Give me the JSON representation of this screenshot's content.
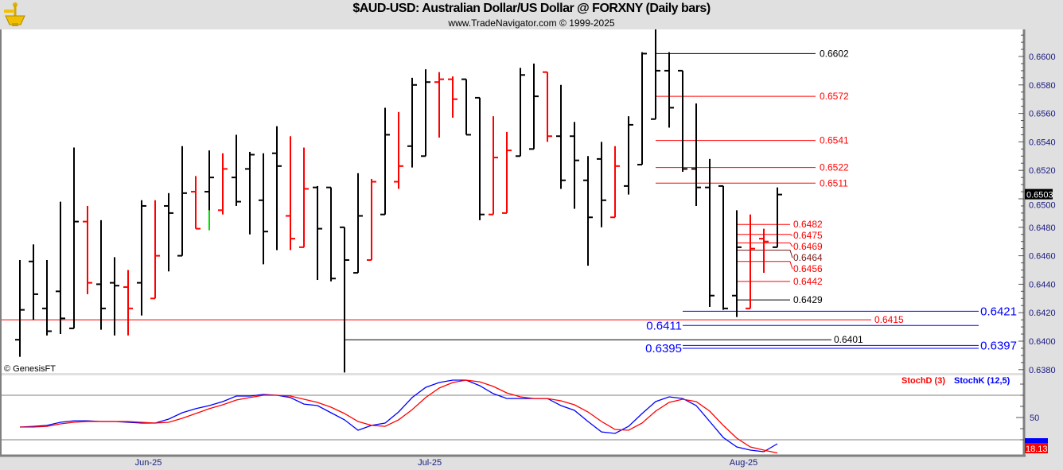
{
  "header": {
    "title": "$AUD-USD:  Australian Dollar/US Dollar @ FORXNY  (Daily bars)",
    "subtitle": "www.TradeNavigator.com © 1999-2025",
    "logo_icon": "sextant-icon"
  },
  "copyright": "© GenesisFT",
  "colors": {
    "up_bar": "#000000",
    "red_bar": "#ff0000",
    "green_bar": "#00dd00",
    "stoch_d": "#ff0000",
    "stoch_k": "#0000ff",
    "level_blue": "#0000ff"
  },
  "chart_data": [
    {
      "type": "ohlc",
      "ylim": [
        0.637,
        0.662
      ],
      "y_ticks": [
        0.66,
        0.658,
        0.656,
        0.654,
        0.652,
        0.65,
        0.648,
        0.646,
        0.644,
        0.642,
        0.64,
        0.638
      ],
      "y_tick_labels": [
        "0.6600",
        "0.6580",
        "0.6560",
        "0.6540",
        "0.6520",
        "0.6500",
        "0.6480",
        "0.6460",
        "0.6440",
        "0.6420",
        "0.6400",
        "0.6380"
      ],
      "last_price": "0.6503",
      "x_labels": [
        {
          "label": "Jun-25",
          "bar": 9.5
        },
        {
          "label": "Jul-25",
          "bar": 30.3
        },
        {
          "label": "Aug-25",
          "bar": 53.5
        }
      ],
      "bars": [
        {
          "o": 0.6401,
          "h": 0.6457,
          "l": 0.6389,
          "c": 0.6422,
          "color": "black"
        },
        {
          "o": 0.6456,
          "h": 0.6468,
          "l": 0.6415,
          "c": 0.6433,
          "color": "black"
        },
        {
          "o": 0.6423,
          "h": 0.6457,
          "l": 0.6404,
          "c": 0.6407,
          "color": "black"
        },
        {
          "o": 0.6435,
          "h": 0.6498,
          "l": 0.6405,
          "c": 0.6416,
          "color": "black"
        },
        {
          "o": 0.6409,
          "h": 0.6536,
          "l": 0.6409,
          "c": 0.6484,
          "color": "black"
        },
        {
          "o": 0.6484,
          "h": 0.6495,
          "l": 0.6433,
          "c": 0.6441,
          "color": "red"
        },
        {
          "o": 0.644,
          "h": 0.6485,
          "l": 0.6408,
          "c": 0.6423,
          "color": "black"
        },
        {
          "o": 0.6441,
          "h": 0.6459,
          "l": 0.6404,
          "c": 0.6439,
          "color": "black"
        },
        {
          "o": 0.6438,
          "h": 0.645,
          "l": 0.6404,
          "c": 0.6423,
          "color": "red"
        },
        {
          "o": 0.6441,
          "h": 0.6499,
          "l": 0.6418,
          "c": 0.6495,
          "color": "black"
        },
        {
          "o": 0.643,
          "h": 0.6499,
          "l": 0.643,
          "c": 0.646,
          "color": "red"
        },
        {
          "o": 0.6495,
          "h": 0.6504,
          "l": 0.6449,
          "c": 0.649,
          "color": "black"
        },
        {
          "o": 0.646,
          "h": 0.6537,
          "l": 0.646,
          "c": 0.6504,
          "color": "black"
        },
        {
          "o": 0.6505,
          "h": 0.6516,
          "l": 0.6479,
          "c": 0.6479,
          "color": "red"
        },
        {
          "o": 0.6505,
          "h": 0.6534,
          "l": 0.6478,
          "c": 0.6515,
          "color": "black",
          "lower_color": "green",
          "lower_from": 0.6492
        },
        {
          "o": 0.6492,
          "h": 0.6532,
          "l": 0.6489,
          "c": 0.6521,
          "color": "red"
        },
        {
          "o": 0.6515,
          "h": 0.6545,
          "l": 0.6495,
          "c": 0.6498,
          "color": "black"
        },
        {
          "o": 0.6521,
          "h": 0.6533,
          "l": 0.6475,
          "c": 0.6531,
          "color": "black"
        },
        {
          "o": 0.6499,
          "h": 0.6532,
          "l": 0.6454,
          "c": 0.6477,
          "color": "black"
        },
        {
          "o": 0.6532,
          "h": 0.6551,
          "l": 0.6464,
          "c": 0.6523,
          "color": "black"
        },
        {
          "o": 0.6488,
          "h": 0.6544,
          "l": 0.6464,
          "c": 0.6472,
          "color": "red"
        },
        {
          "o": 0.6466,
          "h": 0.6536,
          "l": 0.6466,
          "c": 0.6507,
          "color": "red"
        },
        {
          "o": 0.6508,
          "h": 0.6509,
          "l": 0.6443,
          "c": 0.6479,
          "color": "black"
        },
        {
          "o": 0.6508,
          "h": 0.6508,
          "l": 0.6442,
          "c": 0.6444,
          "color": "black"
        },
        {
          "o": 0.648,
          "h": 0.648,
          "l": 0.6378,
          "c": 0.6457,
          "color": "black"
        },
        {
          "o": 0.6448,
          "h": 0.6518,
          "l": 0.6448,
          "c": 0.6488,
          "color": "black"
        },
        {
          "o": 0.6457,
          "h": 0.6514,
          "l": 0.6457,
          "c": 0.6512,
          "color": "red"
        },
        {
          "o": 0.6489,
          "h": 0.6564,
          "l": 0.6489,
          "c": 0.6545,
          "color": "black"
        },
        {
          "o": 0.6512,
          "h": 0.6561,
          "l": 0.6507,
          "c": 0.6523,
          "color": "red"
        },
        {
          "o": 0.6537,
          "h": 0.6585,
          "l": 0.6522,
          "c": 0.658,
          "color": "black"
        },
        {
          "o": 0.653,
          "h": 0.6591,
          "l": 0.653,
          "c": 0.6582,
          "color": "black"
        },
        {
          "o": 0.6582,
          "h": 0.6589,
          "l": 0.6543,
          "c": 0.6584,
          "color": "red"
        },
        {
          "o": 0.6584,
          "h": 0.6586,
          "l": 0.6557,
          "c": 0.657,
          "color": "red"
        },
        {
          "o": 0.6584,
          "h": 0.6584,
          "l": 0.6545,
          "c": 0.6545,
          "color": "black"
        },
        {
          "o": 0.6571,
          "h": 0.6571,
          "l": 0.6485,
          "c": 0.6489,
          "color": "black"
        },
        {
          "o": 0.6489,
          "h": 0.6558,
          "l": 0.6489,
          "c": 0.6529,
          "color": "red"
        },
        {
          "o": 0.649,
          "h": 0.6547,
          "l": 0.649,
          "c": 0.6534,
          "color": "red"
        },
        {
          "o": 0.653,
          "h": 0.6592,
          "l": 0.653,
          "c": 0.6587,
          "color": "black"
        },
        {
          "o": 0.6535,
          "h": 0.6595,
          "l": 0.6535,
          "c": 0.6572,
          "color": "black"
        },
        {
          "o": 0.6589,
          "h": 0.6589,
          "l": 0.654,
          "c": 0.6544,
          "color": "red"
        },
        {
          "o": 0.6544,
          "h": 0.658,
          "l": 0.6507,
          "c": 0.6513,
          "color": "black"
        },
        {
          "o": 0.6544,
          "h": 0.6554,
          "l": 0.6493,
          "c": 0.6527,
          "color": "black"
        },
        {
          "o": 0.6513,
          "h": 0.653,
          "l": 0.6453,
          "c": 0.6487,
          "color": "black"
        },
        {
          "o": 0.6528,
          "h": 0.654,
          "l": 0.648,
          "c": 0.6499,
          "color": "black"
        },
        {
          "o": 0.6487,
          "h": 0.6537,
          "l": 0.6487,
          "c": 0.6523,
          "color": "red"
        },
        {
          "o": 0.6509,
          "h": 0.6558,
          "l": 0.6503,
          "c": 0.6552,
          "color": "black"
        },
        {
          "o": 0.6524,
          "h": 0.6603,
          "l": 0.6524,
          "c": 0.6602,
          "color": "black"
        },
        {
          "o": 0.6556,
          "h": 0.6619,
          "l": 0.6556,
          "c": 0.659,
          "color": "black"
        },
        {
          "o": 0.659,
          "h": 0.6603,
          "l": 0.655,
          "c": 0.6564,
          "color": "black"
        },
        {
          "o": 0.659,
          "h": 0.659,
          "l": 0.6519,
          "c": 0.6521,
          "color": "black"
        },
        {
          "o": 0.6521,
          "h": 0.6567,
          "l": 0.6495,
          "c": 0.6508,
          "color": "black"
        },
        {
          "o": 0.6508,
          "h": 0.6528,
          "l": 0.6424,
          "c": 0.6432,
          "color": "black"
        },
        {
          "o": 0.6509,
          "h": 0.6509,
          "l": 0.6422,
          "c": 0.6423,
          "color": "black"
        },
        {
          "o": 0.6432,
          "h": 0.6492,
          "l": 0.6417,
          "c": 0.6466,
          "color": "black"
        },
        {
          "o": 0.6423,
          "h": 0.6489,
          "l": 0.6423,
          "c": 0.6465,
          "color": "red"
        },
        {
          "o": 0.6472,
          "h": 0.6479,
          "l": 0.6448,
          "c": 0.647,
          "color": "red"
        },
        {
          "o": 0.6466,
          "h": 0.6508,
          "l": 0.6466,
          "c": 0.6503,
          "color": "black"
        }
      ],
      "levels": [
        {
          "value": 0.6602,
          "label": "0.6602",
          "color": "#000000"
        },
        {
          "value": 0.6572,
          "label": "0.6572",
          "color": "#ff0000"
        },
        {
          "value": 0.6541,
          "label": "0.6541",
          "color": "#ff0000"
        },
        {
          "value": 0.6522,
          "label": "0.6522",
          "color": "#ff0000"
        },
        {
          "value": 0.6511,
          "label": "0.6511",
          "color": "#ff0000"
        },
        {
          "value": 0.6482,
          "label": "0.6482",
          "color": "#ff0000"
        },
        {
          "value": 0.6475,
          "label": "0.6475",
          "color": "#ff0000"
        },
        {
          "value": 0.6469,
          "label": "0.6469",
          "color": "#ff0000"
        },
        {
          "value": 0.6464,
          "label": "0.6464",
          "color": "#7a1a1a"
        },
        {
          "value": 0.6456,
          "label": "0.6456",
          "color": "#ff0000"
        },
        {
          "value": 0.6442,
          "label": "0.6442",
          "color": "#ff0000"
        },
        {
          "value": 0.6429,
          "label": "0.6429",
          "color": "#000000"
        },
        {
          "value": 0.6421,
          "label": "0.6421",
          "color": "#0000ff"
        },
        {
          "value": 0.6415,
          "label": "0.6415",
          "color": "#ff0000"
        },
        {
          "value": 0.6411,
          "label": "0.6411",
          "color": "#0000ff"
        },
        {
          "value": 0.6401,
          "label": "0.6401",
          "color": "#000000"
        },
        {
          "value": 0.6397,
          "label": "0.6397",
          "color": "#0000ff"
        },
        {
          "value": 0.6395,
          "label": "0.6395",
          "color": "#0000ff"
        }
      ]
    },
    {
      "type": "line",
      "y_ticks": [
        50
      ],
      "y_tick_labels": [
        "50"
      ],
      "reference_lines": [
        70,
        30
      ],
      "series": [
        {
          "name": "StochD (3)",
          "color": "#ff0000",
          "last_label": "18.13",
          "values": [
            41.4,
            41.4,
            42.1,
            44.3,
            45.7,
            46.4,
            46.4,
            46.4,
            46.4,
            45.7,
            45.0,
            45.7,
            49.3,
            53.6,
            57.9,
            61.4,
            65.7,
            67.9,
            70.0,
            70.0,
            69.3,
            66.4,
            63.6,
            59.3,
            53.6,
            46.4,
            42.9,
            42.1,
            47.9,
            57.1,
            67.9,
            76.4,
            81.4,
            83.6,
            82.1,
            77.9,
            72.1,
            68.6,
            67.1,
            67.1,
            65.0,
            61.4,
            55.0,
            46.4,
            39.3,
            38.6,
            45.0,
            55.7,
            63.6,
            66.4,
            64.3,
            55.7,
            42.9,
            31.4,
            23.6,
            20.7,
            18.13
          ]
        },
        {
          "name": "StochK (12,5)",
          "color": "#0000ff",
          "values": [
            41.4,
            42.1,
            42.9,
            45.7,
            47.1,
            47.1,
            46.4,
            46.4,
            45.7,
            45.0,
            45.0,
            48.6,
            54.3,
            57.9,
            60.7,
            64.3,
            69.3,
            69.3,
            70.7,
            70.0,
            67.9,
            62.1,
            60.7,
            54.3,
            47.9,
            38.6,
            42.9,
            45.0,
            55.0,
            67.9,
            77.1,
            81.4,
            83.6,
            83.6,
            78.6,
            71.4,
            67.1,
            67.1,
            67.1,
            67.1,
            60.7,
            56.4,
            46.4,
            37.1,
            35.7,
            42.1,
            53.6,
            64.3,
            68.6,
            67.1,
            60.7,
            46.4,
            32.1,
            23.6,
            20.7,
            19.3,
            26.4
          ]
        }
      ]
    }
  ]
}
